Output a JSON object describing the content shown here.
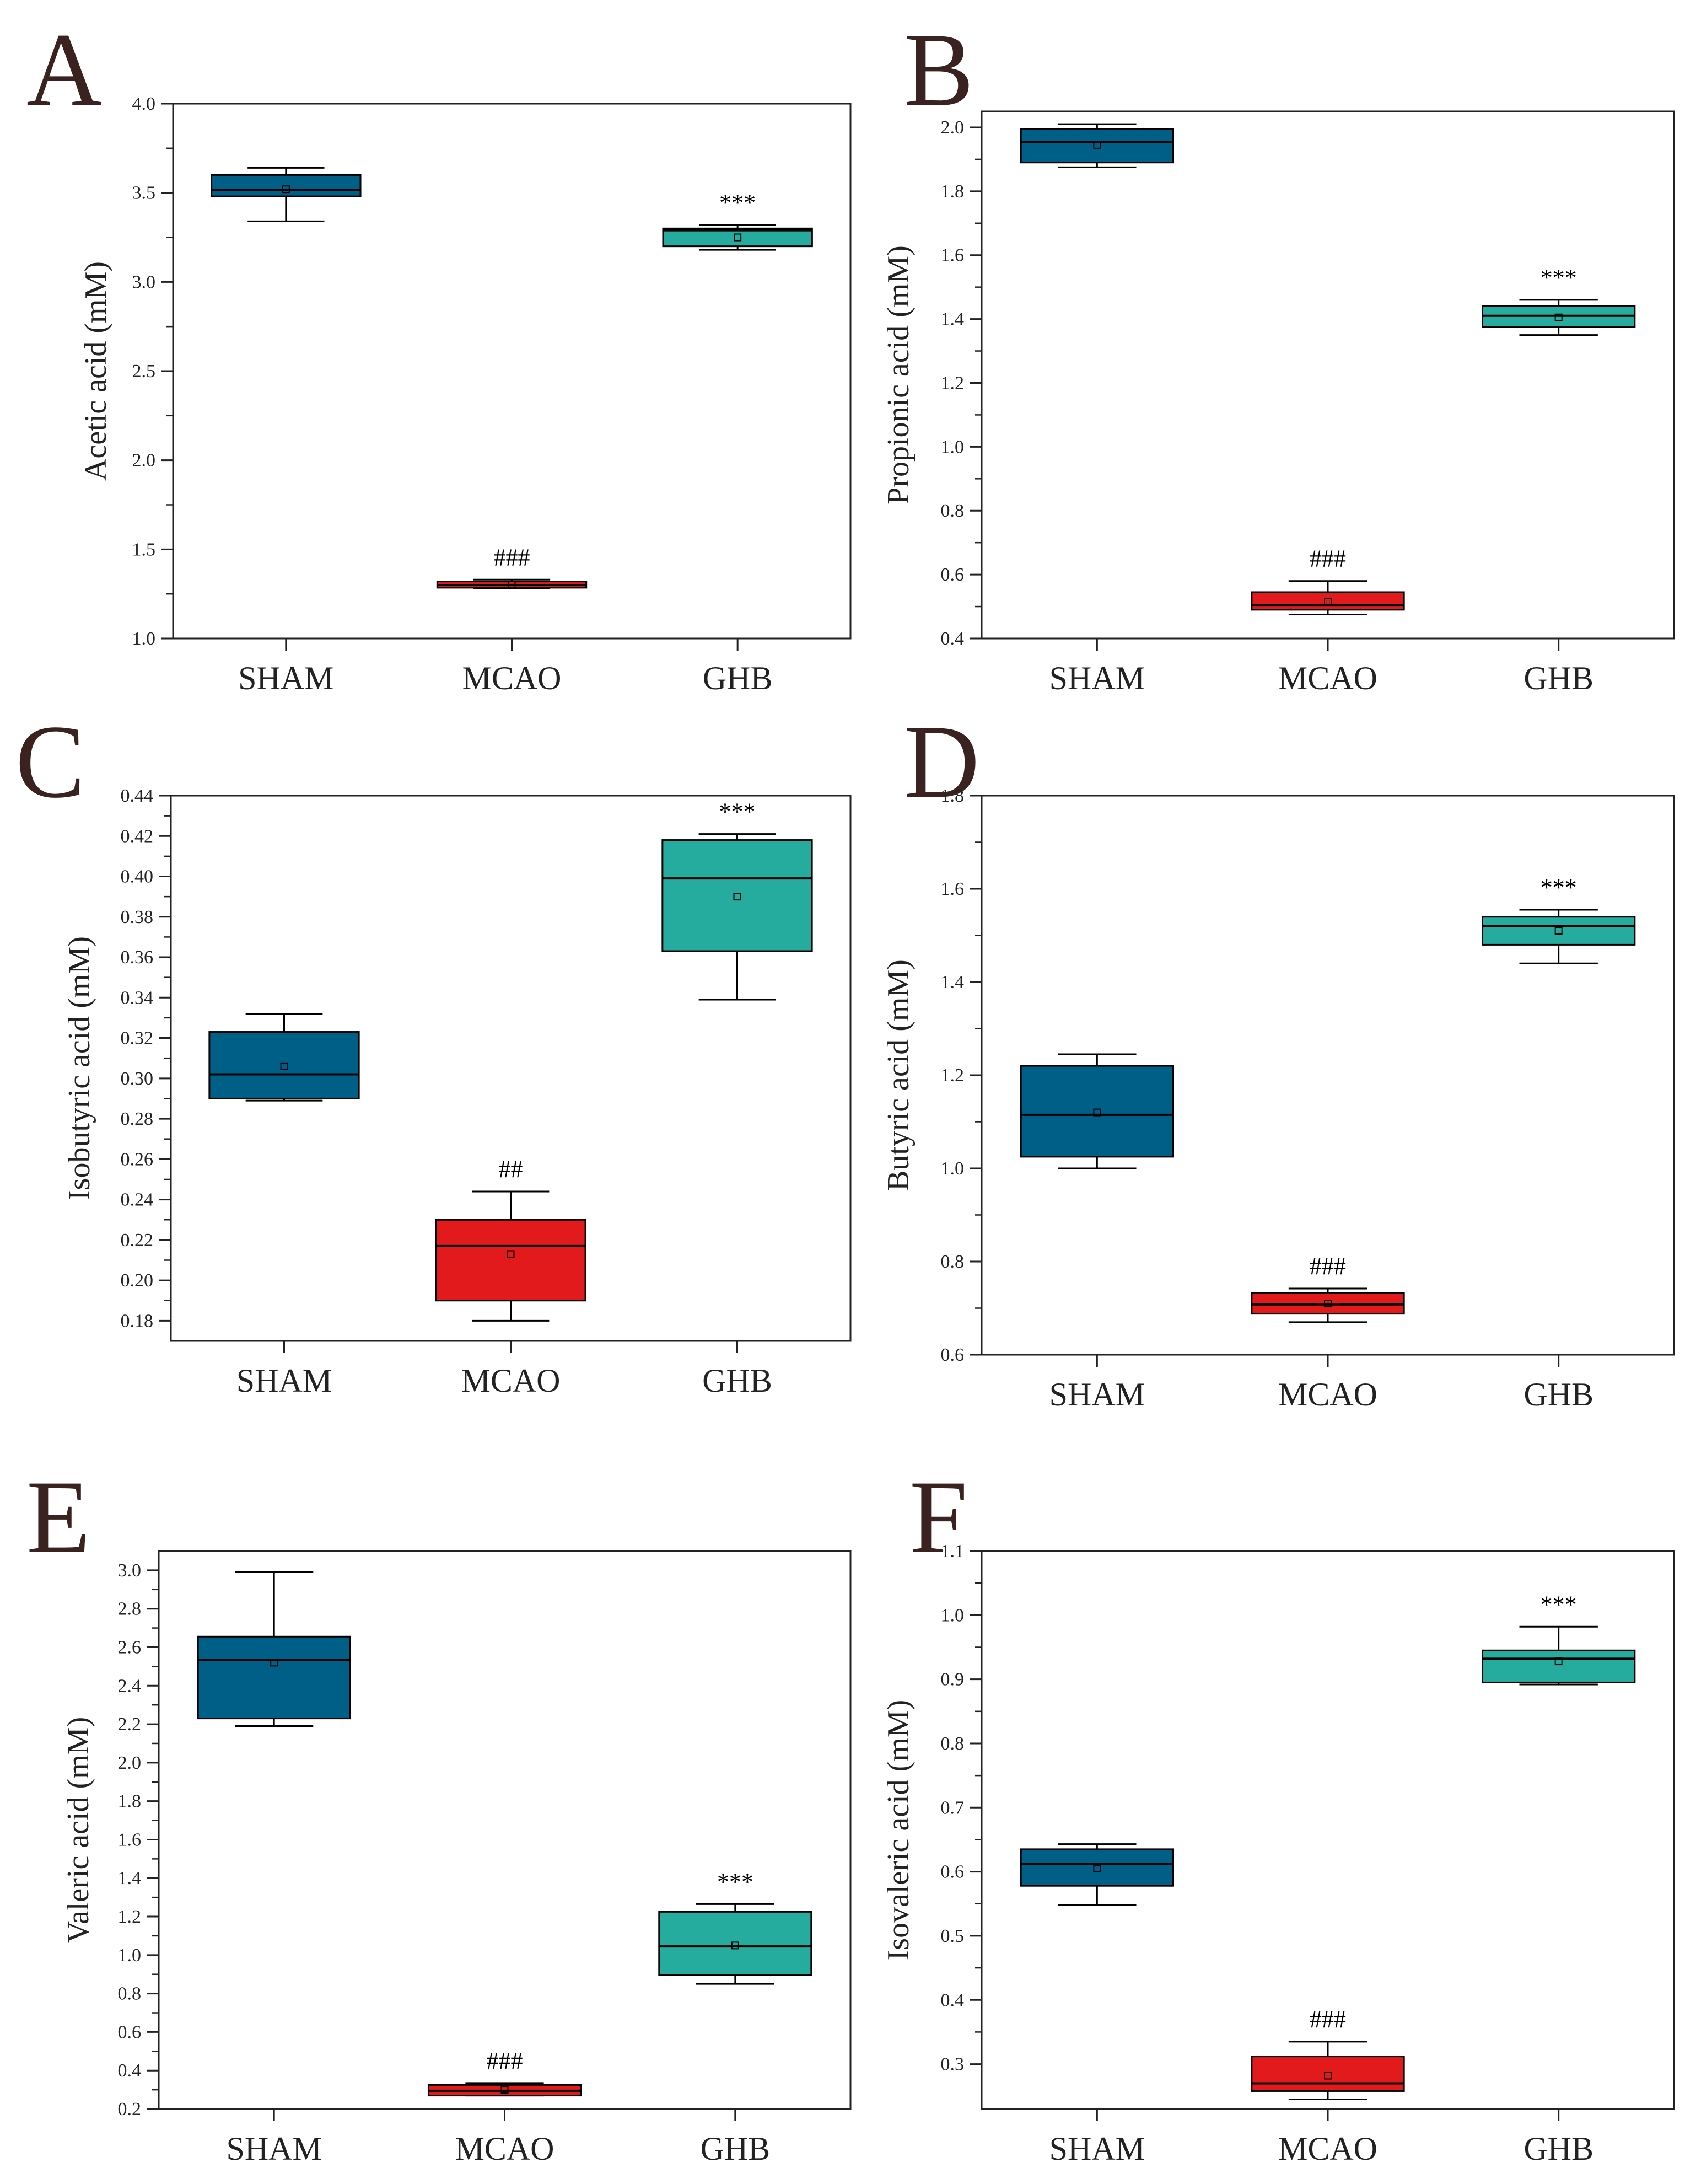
{
  "colors": {
    "SHAM": "#005f86",
    "MCAO": "#e31a1c",
    "GHB": "#26ab9f",
    "panel_letter": "#3a2220",
    "axis": "#222222"
  },
  "chart_data": [
    {
      "panel": "A",
      "type": "box",
      "ylabel": "Acetic acid (mM)",
      "categories": [
        "SHAM",
        "MCAO",
        "GHB"
      ],
      "ylim": [
        1.0,
        4.0
      ],
      "yticks": [
        1.0,
        1.5,
        2.0,
        2.5,
        3.0,
        3.5,
        4.0
      ],
      "tick_decimals": 1,
      "boxes": [
        {
          "min": 3.34,
          "q1": 3.48,
          "median": 3.515,
          "q3": 3.6,
          "max": 3.64,
          "mean": 3.52,
          "annotation": ""
        },
        {
          "min": 1.28,
          "q1": 1.285,
          "median": 1.3,
          "q3": 1.32,
          "max": 1.33,
          "mean": 1.3,
          "annotation": "###"
        },
        {
          "min": 3.18,
          "q1": 3.2,
          "median": 3.29,
          "q3": 3.3,
          "max": 3.32,
          "mean": 3.25,
          "annotation": "***"
        }
      ]
    },
    {
      "panel": "B",
      "type": "box",
      "ylabel": "Propionic acid (mM)",
      "categories": [
        "SHAM",
        "MCAO",
        "GHB"
      ],
      "ylim": [
        0.4,
        2.05
      ],
      "yticks": [
        0.4,
        0.6,
        0.8,
        1.0,
        1.2,
        1.4,
        1.6,
        1.8,
        2.0
      ],
      "tick_decimals": 1,
      "boxes": [
        {
          "min": 1.875,
          "q1": 1.89,
          "median": 1.955,
          "q3": 1.995,
          "max": 2.01,
          "mean": 1.945,
          "annotation": ""
        },
        {
          "min": 0.475,
          "q1": 0.49,
          "median": 0.505,
          "q3": 0.545,
          "max": 0.58,
          "mean": 0.515,
          "annotation": "###"
        },
        {
          "min": 1.35,
          "q1": 1.375,
          "median": 1.41,
          "q3": 1.44,
          "max": 1.46,
          "mean": 1.405,
          "annotation": "***"
        }
      ]
    },
    {
      "panel": "C",
      "type": "box",
      "ylabel": "Isobutyric acid (mM)",
      "categories": [
        "SHAM",
        "MCAO",
        "GHB"
      ],
      "ylim": [
        0.17,
        0.44
      ],
      "yticks": [
        0.18,
        0.2,
        0.22,
        0.24,
        0.26,
        0.28,
        0.3,
        0.32,
        0.34,
        0.36,
        0.38,
        0.4,
        0.42,
        0.44
      ],
      "tick_decimals": 2,
      "boxes": [
        {
          "min": 0.289,
          "q1": 0.29,
          "median": 0.302,
          "q3": 0.323,
          "max": 0.332,
          "mean": 0.306,
          "annotation": ""
        },
        {
          "min": 0.18,
          "q1": 0.19,
          "median": 0.217,
          "q3": 0.23,
          "max": 0.244,
          "mean": 0.213,
          "annotation": "##"
        },
        {
          "min": 0.339,
          "q1": 0.363,
          "median": 0.399,
          "q3": 0.418,
          "max": 0.421,
          "mean": 0.39,
          "annotation": "***"
        }
      ]
    },
    {
      "panel": "D",
      "type": "box",
      "ylabel": "Butyric acid (mM)",
      "categories": [
        "SHAM",
        "MCAO",
        "GHB"
      ],
      "ylim": [
        0.6,
        1.8
      ],
      "yticks": [
        0.6,
        0.8,
        1.0,
        1.2,
        1.4,
        1.6,
        1.8
      ],
      "tick_decimals": 1,
      "boxes": [
        {
          "min": 1.0,
          "q1": 1.025,
          "median": 1.115,
          "q3": 1.22,
          "max": 1.245,
          "mean": 1.12,
          "annotation": ""
        },
        {
          "min": 0.67,
          "q1": 0.688,
          "median": 0.708,
          "q3": 0.733,
          "max": 0.742,
          "mean": 0.71,
          "annotation": "###"
        },
        {
          "min": 1.44,
          "q1": 1.48,
          "median": 1.52,
          "q3": 1.54,
          "max": 1.555,
          "mean": 1.51,
          "annotation": "***"
        }
      ]
    },
    {
      "panel": "E",
      "type": "box",
      "ylabel": "Valeric acid (mM)",
      "categories": [
        "SHAM",
        "MCAO",
        "GHB"
      ],
      "ylim": [
        0.2,
        3.1
      ],
      "yticks": [
        0.2,
        0.4,
        0.6,
        0.8,
        1.0,
        1.2,
        1.4,
        1.6,
        1.8,
        2.0,
        2.2,
        2.4,
        2.6,
        2.8,
        3.0
      ],
      "tick_decimals": 1,
      "boxes": [
        {
          "min": 2.19,
          "q1": 2.23,
          "median": 2.535,
          "q3": 2.655,
          "max": 2.99,
          "mean": 2.52,
          "annotation": ""
        },
        {
          "min": 0.27,
          "q1": 0.27,
          "median": 0.295,
          "q3": 0.325,
          "max": 0.335,
          "mean": 0.3,
          "annotation": "###"
        },
        {
          "min": 0.85,
          "q1": 0.895,
          "median": 1.045,
          "q3": 1.225,
          "max": 1.265,
          "mean": 1.05,
          "annotation": "***"
        }
      ]
    },
    {
      "panel": "F",
      "type": "box",
      "ylabel": "Isovaleric acid (mM)",
      "categories": [
        "SHAM",
        "MCAO",
        "GHB"
      ],
      "ylim": [
        0.23,
        1.1
      ],
      "yticks": [
        0.3,
        0.4,
        0.5,
        0.6,
        0.7,
        0.8,
        0.9,
        1.0,
        1.1
      ],
      "tick_decimals": 1,
      "boxes": [
        {
          "min": 0.548,
          "q1": 0.578,
          "median": 0.612,
          "q3": 0.635,
          "max": 0.643,
          "mean": 0.605,
          "annotation": ""
        },
        {
          "min": 0.245,
          "q1": 0.258,
          "median": 0.27,
          "q3": 0.312,
          "max": 0.335,
          "mean": 0.282,
          "annotation": "###"
        },
        {
          "min": 0.892,
          "q1": 0.895,
          "median": 0.932,
          "q3": 0.945,
          "max": 0.982,
          "mean": 0.928,
          "annotation": "***"
        }
      ]
    }
  ]
}
